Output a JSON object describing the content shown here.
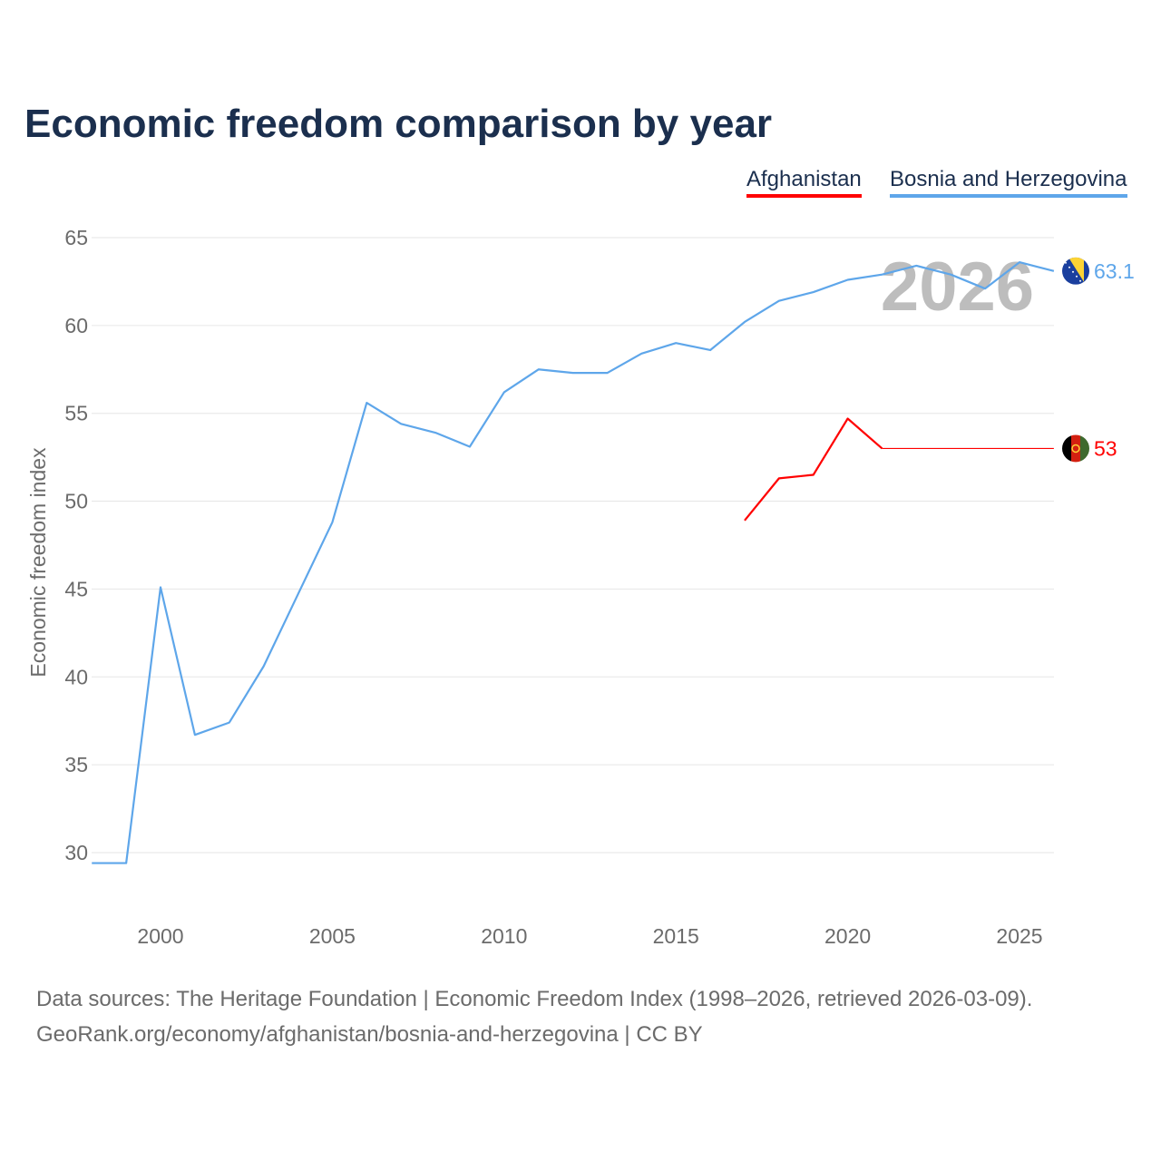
{
  "title": "Economic freedom comparison by year",
  "legend": [
    {
      "label": "Afghanistan",
      "color": "#ff0000"
    },
    {
      "label": "Bosnia and Herzegovina",
      "color": "#5ea6ea"
    }
  ],
  "year_watermark": "2026",
  "footer": {
    "line1": "Data sources: The Heritage Foundation | Economic Freedom Index (1998–2026, retrieved 2026-03-09).",
    "line2": "GeoRank.org/economy/afghanistan/bosnia-and-herzegovina | CC BY"
  },
  "chart_data": {
    "type": "line",
    "title": "Economic freedom comparison by year",
    "xlabel": "",
    "ylabel": "Economic freedom index",
    "xlim": [
      1998,
      2026
    ],
    "ylim": [
      27.5,
      65
    ],
    "xticks": [
      2000,
      2005,
      2010,
      2015,
      2020,
      2025
    ],
    "yticks": [
      30,
      35,
      40,
      45,
      50,
      55,
      60,
      65
    ],
    "grid": true,
    "legend_position": "top-right",
    "series": [
      {
        "name": "Bosnia and Herzegovina",
        "color": "#5ea6ea",
        "end_label": "63.1",
        "x": [
          1998,
          1999,
          2000,
          2001,
          2002,
          2003,
          2004,
          2005,
          2006,
          2007,
          2008,
          2009,
          2010,
          2011,
          2012,
          2013,
          2014,
          2015,
          2016,
          2017,
          2018,
          2019,
          2020,
          2021,
          2022,
          2023,
          2024,
          2025,
          2026
        ],
        "y": [
          29.4,
          29.4,
          45.1,
          36.7,
          37.4,
          40.6,
          44.7,
          48.8,
          55.6,
          54.4,
          53.9,
          53.1,
          56.2,
          57.5,
          57.3,
          57.3,
          58.4,
          59.0,
          58.6,
          60.2,
          61.4,
          61.9,
          62.6,
          62.9,
          63.4,
          62.9,
          62.1,
          63.6,
          63.1
        ]
      },
      {
        "name": "Afghanistan",
        "color": "#ff0000",
        "end_label": "53",
        "x": [
          2017,
          2018,
          2019,
          2020,
          2021
        ],
        "y": [
          48.9,
          51.3,
          51.5,
          54.7,
          53.0
        ],
        "carried_forward_to": 2026
      }
    ]
  }
}
